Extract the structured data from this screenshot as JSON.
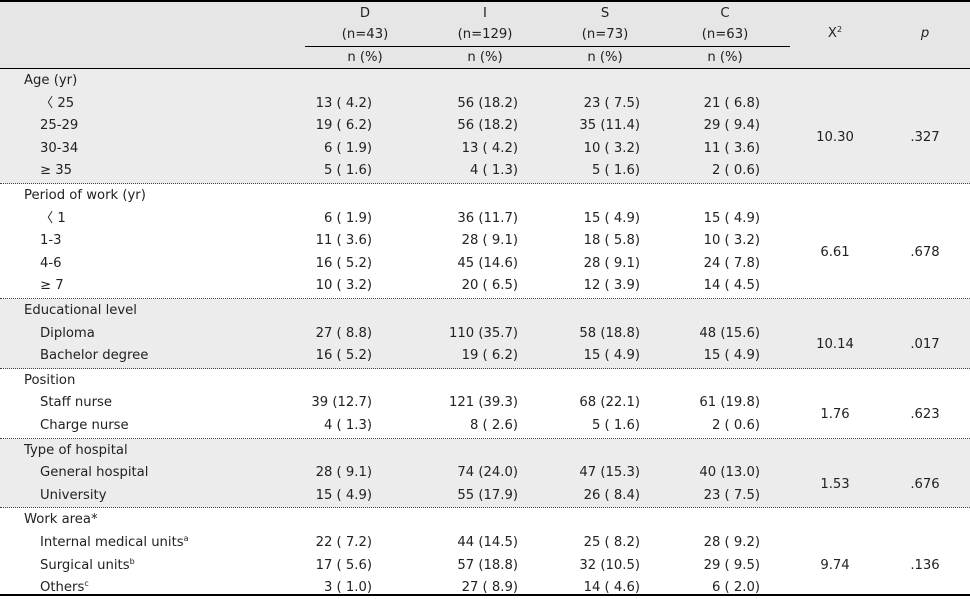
{
  "header": {
    "groups": [
      {
        "letter": "D",
        "n": "(n=43)",
        "unit": "n (%)"
      },
      {
        "letter": "I",
        "n": "(n=129)",
        "unit": "n (%)"
      },
      {
        "letter": "S",
        "n": "(n=73)",
        "unit": "n (%)"
      },
      {
        "letter": "C",
        "n": "(n=63)",
        "unit": "n (%)"
      }
    ],
    "chi_label": "X",
    "chi_sup": "2",
    "p_label": "p"
  },
  "sections": [
    {
      "title": "Age (yr)",
      "rows": [
        {
          "label": "〈 25",
          "sup": "",
          "cells": [
            "13 ( 4.2)",
            "56 (18.2)",
            "23 ( 7.5)",
            "21 ( 6.8)"
          ]
        },
        {
          "label": "25-29",
          "sup": "",
          "cells": [
            "19 ( 6.2)",
            "56 (18.2)",
            "35 (11.4)",
            "29 ( 9.4)"
          ]
        },
        {
          "label": "30-34",
          "sup": "",
          "cells": [
            "6 ( 1.9)",
            "13 ( 4.2)",
            "10 ( 3.2)",
            "11 ( 3.6)"
          ]
        },
        {
          "label": "≥ 35",
          "sup": "",
          "cells": [
            "5 ( 1.6)",
            "4 ( 1.3)",
            "5 ( 1.6)",
            "2 ( 0.6)"
          ]
        }
      ],
      "chi": "10.30",
      "p": ".327"
    },
    {
      "title": "Period of work (yr)",
      "rows": [
        {
          "label": "〈 1",
          "sup": "",
          "cells": [
            "6 ( 1.9)",
            "36 (11.7)",
            "15 ( 4.9)",
            "15 ( 4.9)"
          ]
        },
        {
          "label": "1-3",
          "sup": "",
          "cells": [
            "11 ( 3.6)",
            "28 ( 9.1)",
            "18 ( 5.8)",
            "10 ( 3.2)"
          ]
        },
        {
          "label": "4-6",
          "sup": "",
          "cells": [
            "16 ( 5.2)",
            "45 (14.6)",
            "28 ( 9.1)",
            "24 ( 7.8)"
          ]
        },
        {
          "label": "≥ 7",
          "sup": "",
          "cells": [
            "10 ( 3.2)",
            "20 ( 6.5)",
            "12 ( 3.9)",
            "14 ( 4.5)"
          ]
        }
      ],
      "chi": "6.61",
      "p": ".678"
    },
    {
      "title": "Educational level",
      "rows": [
        {
          "label": "Diploma",
          "sup": "",
          "cells": [
            "27 ( 8.8)",
            "110 (35.7)",
            "58 (18.8)",
            "48 (15.6)"
          ]
        },
        {
          "label": "Bachelor degree",
          "sup": "",
          "cells": [
            "16 ( 5.2)",
            "19 ( 6.2)",
            "15 ( 4.9)",
            "15 ( 4.9)"
          ]
        }
      ],
      "chi": "10.14",
      "p": ".017"
    },
    {
      "title": "Position",
      "rows": [
        {
          "label": "Staff nurse",
          "sup": "",
          "cells": [
            "39 (12.7)",
            "121 (39.3)",
            "68 (22.1)",
            "61 (19.8)"
          ]
        },
        {
          "label": "Charge nurse",
          "sup": "",
          "cells": [
            "4 ( 1.3)",
            "8 ( 2.6)",
            "5 ( 1.6)",
            "2 ( 0.6)"
          ]
        }
      ],
      "chi": "1.76",
      "p": ".623"
    },
    {
      "title": "Type of hospital",
      "rows": [
        {
          "label": "General hospital",
          "sup": "",
          "cells": [
            "28 ( 9.1)",
            "74 (24.0)",
            "47 (15.3)",
            "40 (13.0)"
          ]
        },
        {
          "label": "University",
          "sup": "",
          "cells": [
            "15 ( 4.9)",
            "55 (17.9)",
            "26 ( 8.4)",
            "23 ( 7.5)"
          ]
        }
      ],
      "chi": "1.53",
      "p": ".676"
    },
    {
      "title": "Work area*",
      "rows": [
        {
          "label": "Internal medical units",
          "sup": "a",
          "cells": [
            "22 ( 7.2)",
            "44 (14.5)",
            "25 ( 8.2)",
            "28 ( 9.2)"
          ]
        },
        {
          "label": "Surgical units",
          "sup": "b",
          "cells": [
            "17 ( 5.6)",
            "57 (18.8)",
            "32 (10.5)",
            "29 ( 9.5)"
          ]
        },
        {
          "label": "Others",
          "sup": "c",
          "cells": [
            "3 ( 1.0)",
            "27 ( 8.9)",
            "14 ( 4.6)",
            "6 ( 2.0)"
          ]
        }
      ],
      "chi": "9.74",
      "p": ".136"
    }
  ]
}
